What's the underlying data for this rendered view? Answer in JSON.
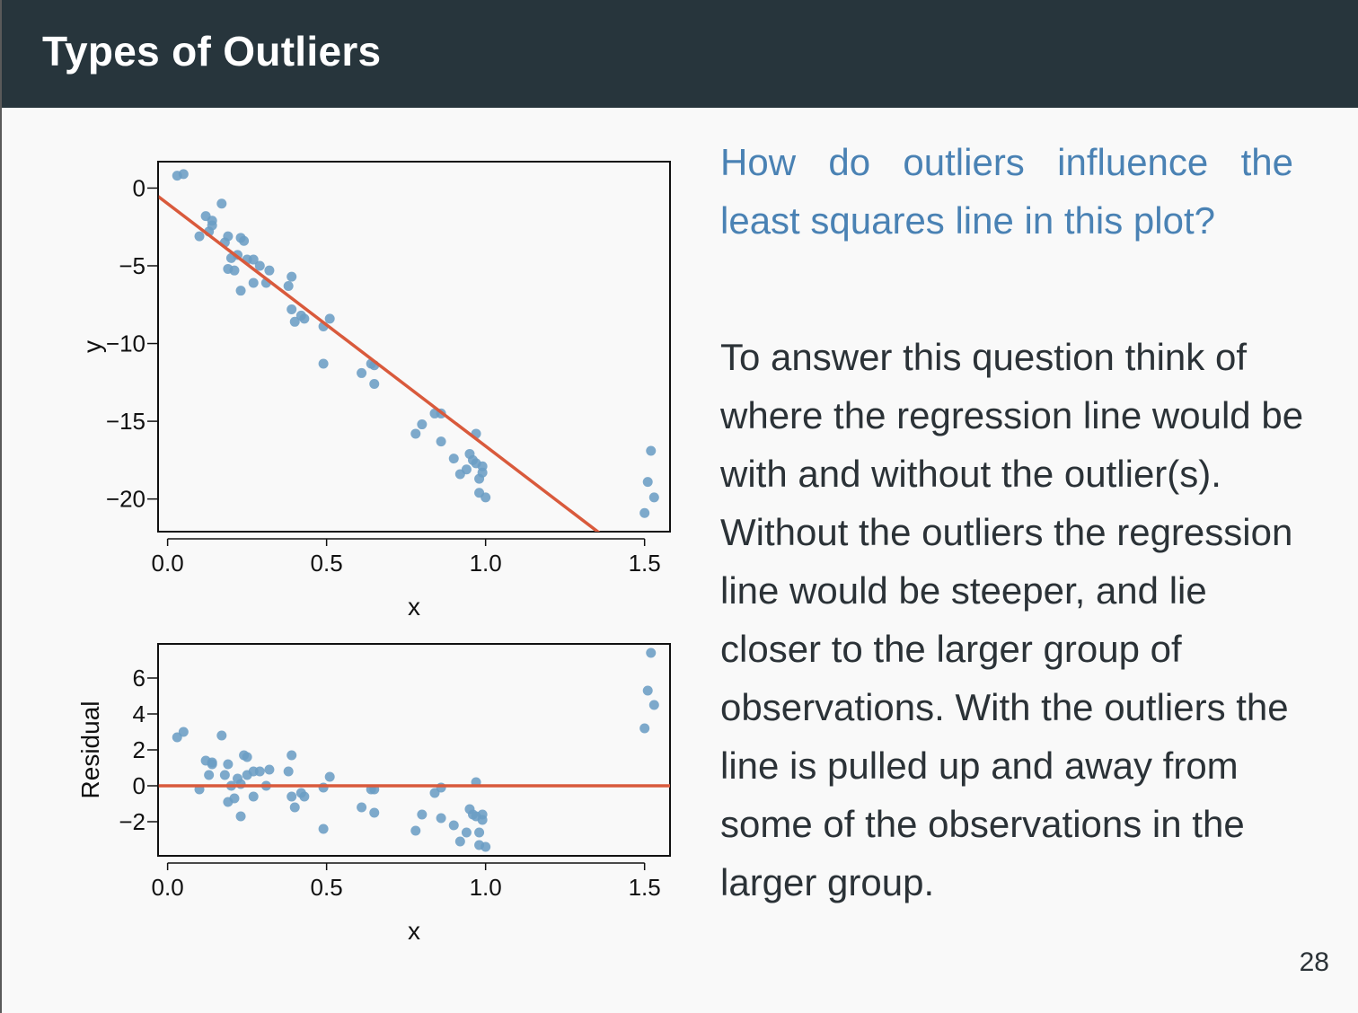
{
  "slide": {
    "title": "Types of Outliers",
    "question": "How do outliers influence the least squares line in this plot?",
    "answer": "To answer this question think of where the regression line would be with and without the outlier(s). Without the outliers the regression line would be steeper, and lie closer to the larger group of observations. With the outliers the line is pulled up and away from some of the observations in the larger group.",
    "page_number": "28"
  },
  "colors": {
    "title_bar": "#27353c",
    "question_text": "#4a82b4",
    "points": "#6b9dc4",
    "regression_line": "#d95a3c"
  },
  "chart_data": [
    {
      "type": "scatter",
      "xlabel": "x",
      "ylabel": "y",
      "xlim": [
        -0.03,
        1.58
      ],
      "ylim": [
        -22.1,
        1.7
      ],
      "xticks": [
        0.0,
        0.5,
        1.0,
        1.5
      ],
      "xtick_labels": [
        "0.0",
        "0.5",
        "1.0",
        "1.5"
      ],
      "yticks": [
        0,
        -5,
        -10,
        -15,
        -20
      ],
      "ytick_labels": [
        "0",
        "−5",
        "−10",
        "−15",
        "−20"
      ],
      "line": {
        "intercept": -1.0,
        "slope": -15.6
      },
      "points": [
        [
          0.03,
          0.8
        ],
        [
          0.05,
          0.9
        ],
        [
          0.1,
          -3.1
        ],
        [
          0.12,
          -1.8
        ],
        [
          0.13,
          -2.8
        ],
        [
          0.14,
          -2.4
        ],
        [
          0.14,
          -2.1
        ],
        [
          0.17,
          -1.0
        ],
        [
          0.18,
          -3.5
        ],
        [
          0.19,
          -3.1
        ],
        [
          0.19,
          -5.2
        ],
        [
          0.2,
          -4.5
        ],
        [
          0.21,
          -5.3
        ],
        [
          0.22,
          -4.3
        ],
        [
          0.23,
          -6.6
        ],
        [
          0.23,
          -3.2
        ],
        [
          0.24,
          -3.4
        ],
        [
          0.25,
          -4.6
        ],
        [
          0.27,
          -4.6
        ],
        [
          0.27,
          -6.1
        ],
        [
          0.29,
          -5.0
        ],
        [
          0.31,
          -6.1
        ],
        [
          0.32,
          -5.3
        ],
        [
          0.38,
          -6.3
        ],
        [
          0.39,
          -5.7
        ],
        [
          0.39,
          -7.8
        ],
        [
          0.4,
          -8.6
        ],
        [
          0.42,
          -8.2
        ],
        [
          0.43,
          -8.4
        ],
        [
          0.49,
          -8.9
        ],
        [
          0.49,
          -11.3
        ],
        [
          0.51,
          -8.4
        ],
        [
          0.61,
          -11.9
        ],
        [
          0.64,
          -11.3
        ],
        [
          0.65,
          -11.4
        ],
        [
          0.65,
          -12.6
        ],
        [
          0.78,
          -15.8
        ],
        [
          0.8,
          -15.2
        ],
        [
          0.84,
          -14.5
        ],
        [
          0.86,
          -14.5
        ],
        [
          0.86,
          -16.3
        ],
        [
          0.9,
          -17.4
        ],
        [
          0.92,
          -18.4
        ],
        [
          0.94,
          -18.1
        ],
        [
          0.95,
          -17.1
        ],
        [
          0.96,
          -17.5
        ],
        [
          0.97,
          -15.8
        ],
        [
          0.97,
          -17.7
        ],
        [
          0.98,
          -18.7
        ],
        [
          0.98,
          -19.6
        ],
        [
          0.99,
          -17.9
        ],
        [
          0.99,
          -18.3
        ],
        [
          1.0,
          -19.9
        ],
        [
          1.5,
          -20.9
        ],
        [
          1.51,
          -18.9
        ],
        [
          1.52,
          -16.9
        ],
        [
          1.53,
          -19.9
        ]
      ]
    },
    {
      "type": "scatter",
      "xlabel": "x",
      "ylabel": "Residual",
      "xlim": [
        -0.03,
        1.58
      ],
      "ylim": [
        -3.9,
        7.9
      ],
      "xticks": [
        0.0,
        0.5,
        1.0,
        1.5
      ],
      "xtick_labels": [
        "0.0",
        "0.5",
        "1.0",
        "1.5"
      ],
      "yticks": [
        6,
        4,
        2,
        0,
        -2
      ],
      "ytick_labels": [
        "6",
        "4",
        "2",
        "0",
        "−2"
      ],
      "line": {
        "intercept": 0,
        "slope": 0
      },
      "points": [
        [
          0.03,
          2.7
        ],
        [
          0.05,
          3.0
        ],
        [
          0.1,
          -0.2
        ],
        [
          0.12,
          1.4
        ],
        [
          0.13,
          0.6
        ],
        [
          0.14,
          1.3
        ],
        [
          0.14,
          1.2
        ],
        [
          0.17,
          2.8
        ],
        [
          0.18,
          0.6
        ],
        [
          0.19,
          1.2
        ],
        [
          0.19,
          -0.9
        ],
        [
          0.2,
          0.0
        ],
        [
          0.21,
          -0.7
        ],
        [
          0.22,
          0.4
        ],
        [
          0.23,
          -1.7
        ],
        [
          0.23,
          0.1
        ],
        [
          0.24,
          1.7
        ],
        [
          0.25,
          1.6
        ],
        [
          0.25,
          0.6
        ],
        [
          0.27,
          0.8
        ],
        [
          0.27,
          -0.6
        ],
        [
          0.29,
          0.8
        ],
        [
          0.31,
          0.0
        ],
        [
          0.32,
          0.9
        ],
        [
          0.38,
          0.8
        ],
        [
          0.39,
          1.7
        ],
        [
          0.39,
          -0.6
        ],
        [
          0.4,
          -1.2
        ],
        [
          0.42,
          -0.4
        ],
        [
          0.43,
          -0.6
        ],
        [
          0.49,
          -0.1
        ],
        [
          0.49,
          -2.4
        ],
        [
          0.51,
          0.5
        ],
        [
          0.61,
          -1.2
        ],
        [
          0.64,
          -0.2
        ],
        [
          0.65,
          -0.2
        ],
        [
          0.65,
          -1.5
        ],
        [
          0.78,
          -2.5
        ],
        [
          0.8,
          -1.6
        ],
        [
          0.84,
          -0.4
        ],
        [
          0.86,
          -0.1
        ],
        [
          0.86,
          -1.8
        ],
        [
          0.9,
          -2.2
        ],
        [
          0.92,
          -3.1
        ],
        [
          0.94,
          -2.6
        ],
        [
          0.95,
          -1.3
        ],
        [
          0.96,
          -1.6
        ],
        [
          0.97,
          0.2
        ],
        [
          0.97,
          -1.7
        ],
        [
          0.98,
          -2.6
        ],
        [
          0.98,
          -3.3
        ],
        [
          0.99,
          -1.6
        ],
        [
          0.99,
          -1.9
        ],
        [
          1.0,
          -3.4
        ],
        [
          1.5,
          3.2
        ],
        [
          1.51,
          5.3
        ],
        [
          1.52,
          7.4
        ],
        [
          1.53,
          4.5
        ]
      ]
    }
  ]
}
